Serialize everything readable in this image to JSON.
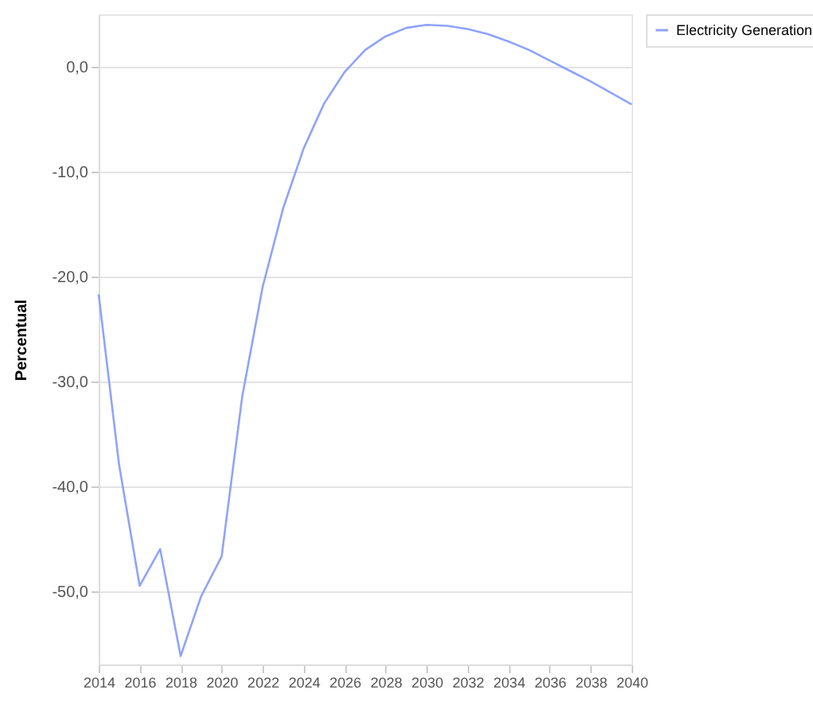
{
  "chart_data": {
    "type": "line",
    "ylabel": "Percentual",
    "x": [
      2014,
      2015,
      2016,
      2017,
      2018,
      2019,
      2020,
      2021,
      2022,
      2023,
      2024,
      2025,
      2026,
      2027,
      2028,
      2029,
      2030,
      2031,
      2032,
      2033,
      2034,
      2035,
      2036,
      2037,
      2038,
      2039,
      2040
    ],
    "series": [
      {
        "name": "Electricity Generation",
        "color": "#8fa3fb",
        "values": [
          -21.7,
          -38,
          -49.5,
          -46,
          -56.2,
          -50.5,
          -46.7,
          -31.5,
          -21,
          -13.5,
          -7.8,
          -3.5,
          -0.5,
          1.6,
          2.9,
          3.7,
          4,
          3.9,
          3.6,
          3.1,
          2.4,
          1.6,
          0.6,
          -0.4,
          -1.4,
          -2.5,
          -3.6
        ]
      }
    ],
    "xlim": [
      2014,
      2040
    ],
    "xticks": [
      2014,
      2016,
      2018,
      2020,
      2022,
      2024,
      2026,
      2028,
      2030,
      2032,
      2034,
      2036,
      2038,
      2040
    ],
    "ylim": [
      -57,
      5
    ],
    "yticks": [
      {
        "value": -50,
        "label": "-50,0"
      },
      {
        "value": -40,
        "label": "-40,0"
      },
      {
        "value": -30,
        "label": "-30,0"
      },
      {
        "value": -20,
        "label": "-20,0"
      },
      {
        "value": -10,
        "label": "-10,0"
      },
      {
        "value": 0,
        "label": "0,0"
      }
    ],
    "grid": "y",
    "legend": "top right"
  }
}
